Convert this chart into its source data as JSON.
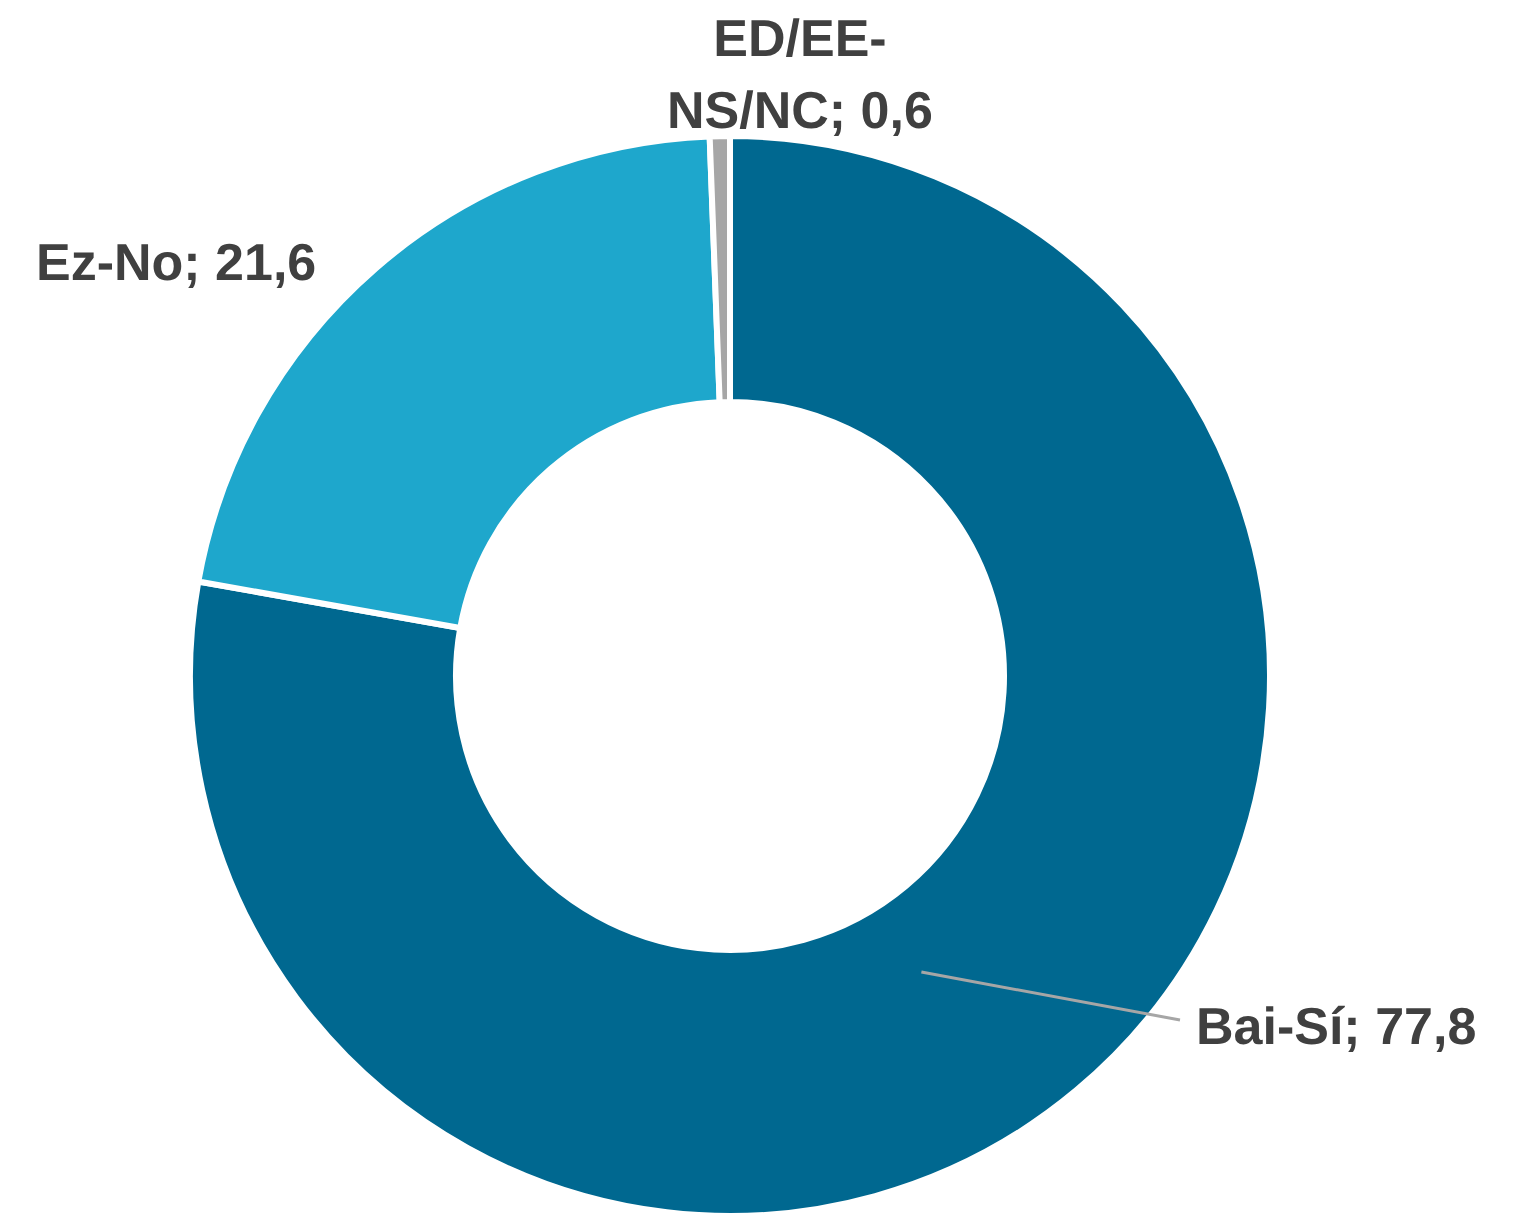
{
  "chart_data": {
    "type": "donut",
    "categories": [
      "Bai-Sí",
      "Ez-No",
      "ED/EE-NS/NC"
    ],
    "values": [
      77.8,
      21.6,
      0.6
    ],
    "value_labels": [
      "77,8",
      "21,6",
      "0,6"
    ],
    "colors": [
      "#006890",
      "#1ea7cc",
      "#a6a6a6"
    ]
  }
}
